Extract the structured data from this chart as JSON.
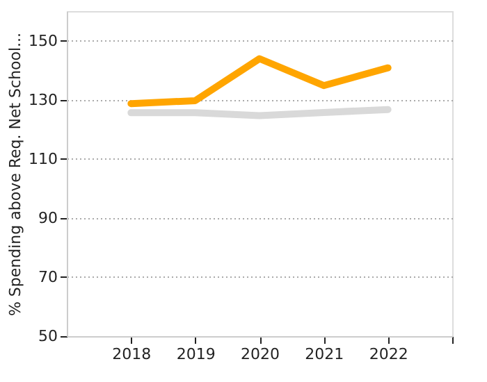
{
  "chart_data": {
    "type": "line",
    "ylabel": "% Spending above Req. Net School...",
    "x": [
      2018,
      2019,
      2020,
      2021,
      2022
    ],
    "series": [
      {
        "color": "#d9d9d9",
        "values": [
          125.6,
          125.6,
          124.6,
          125.7,
          126.7
        ]
      },
      {
        "color": "#ffa500",
        "values": [
          128.7,
          129.7,
          143.9,
          134.8,
          140.8
        ]
      }
    ],
    "xlim": [
      2017,
      2023
    ],
    "xticks": [
      2018,
      2019,
      2020,
      2021,
      2022,
      {
        "value": 2023,
        "label": null
      }
    ],
    "ylim": [
      50,
      160
    ],
    "yticks": [
      50,
      70,
      90,
      110,
      130,
      150
    ],
    "grid": "y",
    "marker": "none",
    "line_style": "solid",
    "legend": false
  }
}
